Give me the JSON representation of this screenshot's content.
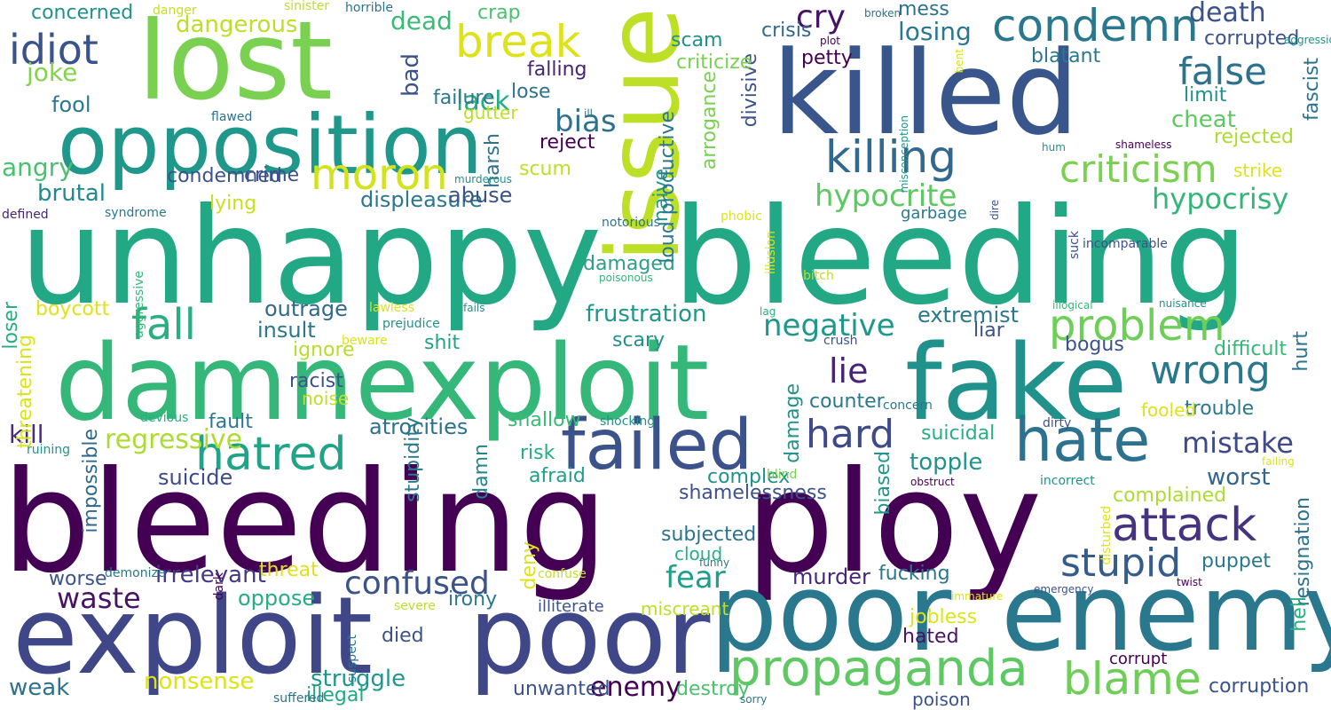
{
  "words": [
    {
      "text": "bleeding",
      "color": "#440154"
    },
    {
      "text": "ploy",
      "color": "#440154"
    },
    {
      "text": "unhappy",
      "color": "#22a884"
    },
    {
      "text": "bleeding",
      "color": "#22a884"
    },
    {
      "text": "exploit",
      "color": "#3f4788"
    },
    {
      "text": "poor",
      "color": "#3f4788"
    },
    {
      "text": "poor",
      "color": "#2a788e"
    },
    {
      "text": "enemy",
      "color": "#2a788e"
    },
    {
      "text": "damn",
      "color": "#35b779"
    },
    {
      "text": "exploit",
      "color": "#35b779"
    },
    {
      "text": "fake",
      "color": "#21918c"
    },
    {
      "text": "killed",
      "color": "#39568c"
    },
    {
      "text": "lost",
      "color": "#7ad151"
    },
    {
      "text": "issue",
      "color": "#bddf26"
    },
    {
      "text": "opposition",
      "color": "#1f988b"
    },
    {
      "text": "failed",
      "color": "#3b528b"
    },
    {
      "text": "hate",
      "color": "#2c728e"
    },
    {
      "text": "propaganda",
      "color": "#5ec962"
    },
    {
      "text": "blame",
      "color": "#6ece58"
    },
    {
      "text": "attack",
      "color": "#46337f"
    },
    {
      "text": "hatred",
      "color": "#20a386"
    },
    {
      "text": "moron",
      "color": "#d2e21b"
    },
    {
      "text": "condemn",
      "color": "#2a788e"
    },
    {
      "text": "killing",
      "color": "#31688e"
    },
    {
      "text": "criticism",
      "color": "#7ad151"
    },
    {
      "text": "break",
      "color": "#dde318"
    },
    {
      "text": "idiot",
      "color": "#3b528b"
    },
    {
      "text": "false",
      "color": "#2c728e"
    },
    {
      "text": "problem",
      "color": "#6ece58"
    },
    {
      "text": "wrong",
      "color": "#2a788e"
    },
    {
      "text": "stupid",
      "color": "#365c8d"
    },
    {
      "text": "fall",
      "color": "#29af7f"
    },
    {
      "text": "hard",
      "color": "#3e4a89"
    },
    {
      "text": "confused",
      "color": "#3b528b"
    },
    {
      "text": "waste",
      "color": "#471365"
    },
    {
      "text": "fear",
      "color": "#1f9e89"
    },
    {
      "text": "mistake",
      "color": "#3e4a89"
    },
    {
      "text": "lie",
      "color": "#482475"
    },
    {
      "text": "hypocrite",
      "color": "#5ec962"
    },
    {
      "text": "negative",
      "color": "#1f988b"
    },
    {
      "text": "hypocrisy",
      "color": "#34b679"
    },
    {
      "text": "frustration",
      "color": "#1f988b"
    },
    {
      "text": "cry",
      "color": "#471365"
    },
    {
      "text": "dead",
      "color": "#3aba76"
    },
    {
      "text": "lack",
      "color": "#25ac82"
    },
    {
      "text": "bias",
      "color": "#2c728e"
    },
    {
      "text": "bad",
      "color": "#3b528b"
    },
    {
      "text": "death",
      "color": "#3b528b"
    },
    {
      "text": "losing",
      "color": "#2a788e"
    },
    {
      "text": "worst",
      "color": "#32658e"
    },
    {
      "text": "enemy",
      "color": "#440154"
    },
    {
      "text": "weak",
      "color": "#2c728e"
    },
    {
      "text": "struggle",
      "color": "#1f988b"
    },
    {
      "text": "nonsense",
      "color": "#dde318"
    },
    {
      "text": "regressive",
      "color": "#addc30"
    },
    {
      "text": "kill",
      "color": "#472d7b"
    },
    {
      "text": "joke",
      "color": "#84d44b"
    },
    {
      "text": "angry",
      "color": "#4ac16d"
    },
    {
      "text": "fool",
      "color": "#2a788e"
    },
    {
      "text": "brutal",
      "color": "#23898e"
    },
    {
      "text": "dangerous",
      "color": "#bddf26"
    },
    {
      "text": "condemned",
      "color": "#3b528b"
    },
    {
      "text": "crime",
      "color": "#3b528b"
    },
    {
      "text": "lying",
      "color": "#c8e020"
    },
    {
      "text": "displeasure",
      "color": "#2a788e"
    },
    {
      "text": "abuse",
      "color": "#3b528b"
    },
    {
      "text": "boycott",
      "color": "#dde318"
    },
    {
      "text": "outrage",
      "color": "#31688e"
    },
    {
      "text": "insult",
      "color": "#2a788e"
    },
    {
      "text": "ignore",
      "color": "#b5de2b"
    },
    {
      "text": "shit",
      "color": "#20a386"
    },
    {
      "text": "racist",
      "color": "#3b528b"
    },
    {
      "text": "noise",
      "color": "#bddf26"
    },
    {
      "text": "fault",
      "color": "#2a788e"
    },
    {
      "text": "atrocities",
      "color": "#2c728e"
    },
    {
      "text": "suicide",
      "color": "#3e4a89"
    },
    {
      "text": "irrelevant",
      "color": "#443983"
    },
    {
      "text": "threat",
      "color": "#dde318"
    },
    {
      "text": "oppose",
      "color": "#27ad81"
    },
    {
      "text": "irony",
      "color": "#2a788e"
    },
    {
      "text": "worse",
      "color": "#3b528b"
    },
    {
      "text": "died",
      "color": "#3b528b"
    },
    {
      "text": "illegal",
      "color": "#22a884"
    },
    {
      "text": "unwanted",
      "color": "#3b528b"
    },
    {
      "text": "destroy",
      "color": "#4ac16d"
    },
    {
      "text": "deny",
      "color": "#dde318"
    },
    {
      "text": "harsh",
      "color": "#2c728e"
    },
    {
      "text": "scum",
      "color": "#bddf26"
    },
    {
      "text": "reject",
      "color": "#440154"
    },
    {
      "text": "lose",
      "color": "#2c728e"
    },
    {
      "text": "failure",
      "color": "#2a788e"
    },
    {
      "text": "gutter",
      "color": "#bddf26"
    },
    {
      "text": "falling",
      "color": "#482475"
    },
    {
      "text": "crap",
      "color": "#4ac16d"
    },
    {
      "text": "damaged",
      "color": "#2e9e89"
    },
    {
      "text": "scary",
      "color": "#21918c"
    },
    {
      "text": "shallow",
      "color": "#3aba76"
    },
    {
      "text": "risk",
      "color": "#27ad81"
    },
    {
      "text": "afraid",
      "color": "#1f9e89"
    },
    {
      "text": "shamelessness",
      "color": "#3b528b"
    },
    {
      "text": "complex",
      "color": "#21918c"
    },
    {
      "text": "damn",
      "color": "#25848e"
    },
    {
      "text": "stupidity",
      "color": "#2a788e"
    },
    {
      "text": "subjected",
      "color": "#2c728e"
    },
    {
      "text": "cloud",
      "color": "#29af7f"
    },
    {
      "text": "murder",
      "color": "#482878"
    },
    {
      "text": "biased",
      "color": "#1f988b"
    },
    {
      "text": "damage",
      "color": "#21918c"
    },
    {
      "text": "counter",
      "color": "#2a788e"
    },
    {
      "text": "naive",
      "color": "#1f988b"
    },
    {
      "text": "loud productive",
      "color": "#2a788e"
    },
    {
      "text": "arrogance",
      "color": "#7ad151"
    },
    {
      "text": "divisive",
      "color": "#3b528b"
    },
    {
      "text": "criticize",
      "color": "#7ad151"
    },
    {
      "text": "scam",
      "color": "#21918c"
    },
    {
      "text": "crisis",
      "color": "#31688e"
    },
    {
      "text": "petty",
      "color": "#440154"
    },
    {
      "text": "mess",
      "color": "#2c728e"
    },
    {
      "text": "blatant",
      "color": "#2a788e"
    },
    {
      "text": "corrupted",
      "color": "#3b528b"
    },
    {
      "text": "limit",
      "color": "#21918c"
    },
    {
      "text": "cheat",
      "color": "#5ec962"
    },
    {
      "text": "rejected",
      "color": "#addc30"
    },
    {
      "text": "fascist",
      "color": "#2c728e"
    },
    {
      "text": "strike",
      "color": "#dde318"
    },
    {
      "text": "garbage",
      "color": "#2a788e"
    },
    {
      "text": "extremist",
      "color": "#2a788e"
    },
    {
      "text": "liar",
      "color": "#3b528b"
    },
    {
      "text": "bogus",
      "color": "#3b528b"
    },
    {
      "text": "difficult",
      "color": "#35b779"
    },
    {
      "text": "trouble",
      "color": "#2a788e"
    },
    {
      "text": "suicidal",
      "color": "#29af7f"
    },
    {
      "text": "topple",
      "color": "#21918c"
    },
    {
      "text": "fooled",
      "color": "#dde318"
    },
    {
      "text": "hurt",
      "color": "#2c728e"
    },
    {
      "text": "complained",
      "color": "#addc30"
    },
    {
      "text": "resignation",
      "color": "#2c728e"
    },
    {
      "text": "puppet",
      "color": "#2a788e"
    },
    {
      "text": "hell",
      "color": "#29af7f"
    },
    {
      "text": "fucking",
      "color": "#2a788e"
    },
    {
      "text": "jobless",
      "color": "#dde318"
    },
    {
      "text": "hated",
      "color": "#471365"
    },
    {
      "text": "corrupt",
      "color": "#440154"
    },
    {
      "text": "corruption",
      "color": "#3b528b"
    },
    {
      "text": "poison",
      "color": "#3b528b"
    },
    {
      "text": "illiterate",
      "color": "#3b528b"
    },
    {
      "text": "miscreant",
      "color": "#bddf26"
    },
    {
      "text": "loser",
      "color": "#27ad81"
    },
    {
      "text": "threatening",
      "color": "#dde318"
    },
    {
      "text": "impossible",
      "color": "#31688e"
    },
    {
      "text": "concerned",
      "color": "#21918c"
    },
    {
      "text": "danger",
      "color": "#c8e020"
    },
    {
      "text": "sinister",
      "color": "#bddf26"
    },
    {
      "text": "horrible",
      "color": "#2c728e"
    },
    {
      "text": "flawed",
      "color": "#2c728e"
    },
    {
      "text": "defined",
      "color": "#482475"
    },
    {
      "text": "syndrome",
      "color": "#2a788e"
    },
    {
      "text": "aggressive",
      "color": "#35b779"
    },
    {
      "text": "devious",
      "color": "#29af7f"
    },
    {
      "text": "ruining",
      "color": "#21918c"
    },
    {
      "text": "demonize",
      "color": "#2a788e"
    },
    {
      "text": "dark",
      "color": "#440154"
    },
    {
      "text": "suffered",
      "color": "#2c728e"
    },
    {
      "text": "suspect",
      "color": "#2c728e"
    },
    {
      "text": "severe",
      "color": "#bddf26"
    },
    {
      "text": "confuse",
      "color": "#bddf26"
    },
    {
      "text": "funny",
      "color": "#2a788e"
    },
    {
      "text": "lawless",
      "color": "#dde318"
    },
    {
      "text": "prejudice",
      "color": "#21918c"
    },
    {
      "text": "fails",
      "color": "#21918c"
    },
    {
      "text": "beware",
      "color": "#dde318"
    },
    {
      "text": "shocking",
      "color": "#21918c"
    },
    {
      "text": "blind",
      "color": "#7ad151"
    },
    {
      "text": "poisonous",
      "color": "#35b779"
    },
    {
      "text": "lag",
      "color": "#29af7f"
    },
    {
      "text": "illusion",
      "color": "#dde318"
    },
    {
      "text": "phobic",
      "color": "#dde318"
    },
    {
      "text": "notorious",
      "color": "#2c728e"
    },
    {
      "text": "bitch",
      "color": "#bddf26"
    },
    {
      "text": "crush",
      "color": "#3b528b"
    },
    {
      "text": "concern",
      "color": "#2a788e"
    },
    {
      "text": "dirty",
      "color": "#3b528b"
    },
    {
      "text": "obstruct",
      "color": "#440154"
    },
    {
      "text": "incorrect",
      "color": "#21918c"
    },
    {
      "text": "disturbed",
      "color": "#dde318"
    },
    {
      "text": "failing",
      "color": "#dde318"
    },
    {
      "text": "twist",
      "color": "#440154"
    },
    {
      "text": "emergency",
      "color": "#3b528b"
    },
    {
      "text": "immature",
      "color": "#dde318"
    },
    {
      "text": "sorry",
      "color": "#2c728e"
    },
    {
      "text": "illogical",
      "color": "#35b779"
    },
    {
      "text": "nuisance",
      "color": "#21918c"
    },
    {
      "text": "incomparable",
      "color": "#3b528b"
    },
    {
      "text": "suck",
      "color": "#3b528b"
    },
    {
      "text": "dire",
      "color": "#3b528b"
    },
    {
      "text": "hum",
      "color": "#21918c"
    },
    {
      "text": "shameless",
      "color": "#440154"
    },
    {
      "text": "misconception",
      "color": "#21918c"
    },
    {
      "text": "bent",
      "color": "#dde318"
    },
    {
      "text": "aggression",
      "color": "#21918c"
    },
    {
      "text": "plot",
      "color": "#440154"
    },
    {
      "text": "broken",
      "color": "#2c728e"
    },
    {
      "text": "ill",
      "color": "#2a788e"
    },
    {
      "text": "murderous",
      "color": "#21918c"
    },
    {
      "text": "bomb",
      "color": "#21918c"
    }
  ]
}
